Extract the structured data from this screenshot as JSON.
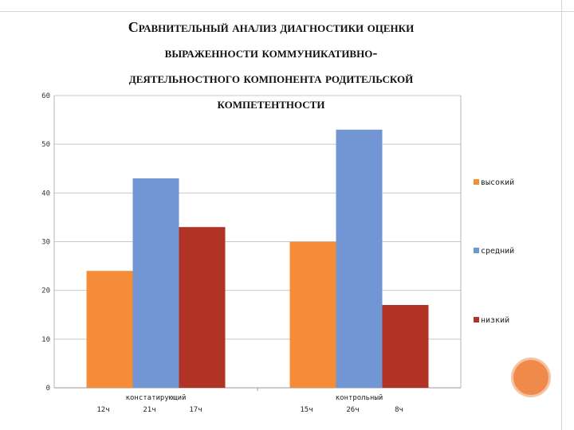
{
  "title_lines": [
    "Сравнительный анализ  диагностики оценки",
    "выраженности  коммуникативно-",
    "деятельностного компонента родительской",
    "компетентности"
  ],
  "colors": {
    "decor_circle": "#f08a4b"
  },
  "chart_data": {
    "type": "bar",
    "categories": [
      "констатирующий",
      "контрольный"
    ],
    "series": [
      {
        "name": "высокий",
        "values": [
          24,
          30
        ],
        "color": "#f58c38",
        "counts": [
          "12ч",
          "15ч"
        ]
      },
      {
        "name": "средний",
        "values": [
          43,
          53
        ],
        "color": "#7296d4",
        "counts": [
          "21ч",
          "26ч"
        ]
      },
      {
        "name": "низкий",
        "values": [
          33,
          17
        ],
        "color": "#b03325",
        "counts": [
          "17ч",
          "8ч"
        ]
      }
    ],
    "ylim": [
      0,
      60
    ],
    "yticks": [
      0,
      10,
      20,
      30,
      40,
      50,
      60
    ],
    "grid": true,
    "legend": "right"
  }
}
